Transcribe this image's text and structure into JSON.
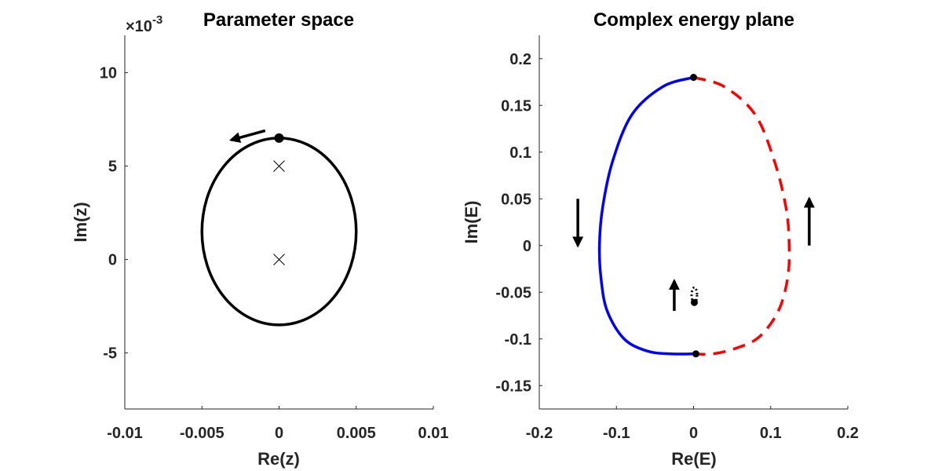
{
  "chart_data": [
    {
      "type": "line",
      "title": "Parameter space",
      "xlabel": "Re(z)",
      "ylabel": "Im(z)",
      "y_exponent_label": "×10",
      "y_exponent": "-3",
      "xlim": [
        -0.01,
        0.01
      ],
      "ylim": [
        -0.008,
        0.012
      ],
      "xticks": [
        -0.01,
        -0.005,
        0,
        0.005,
        0.01
      ],
      "xtick_labels": [
        "-0.01",
        "-0.005",
        "0",
        "0.005",
        "0.01"
      ],
      "yticks": [
        -0.005,
        0,
        0.005,
        0.01
      ],
      "ytick_labels": [
        "-5",
        "0",
        "5",
        "10"
      ],
      "grid": false,
      "loop": {
        "center": [
          0,
          0.0015
        ],
        "radius_x": 0.005,
        "radius_y": 0.005,
        "color": "#000000",
        "style": "solid"
      },
      "start_point": [
        0,
        0.0065
      ],
      "exceptional_points": [
        [
          0,
          0.005
        ],
        [
          0,
          0
        ]
      ],
      "arrow": {
        "from": [
          -0.0009,
          0.0069
        ],
        "to": [
          -0.0031,
          0.0064
        ],
        "direction": "counterclockwise"
      }
    },
    {
      "type": "line",
      "title": "Complex energy plane",
      "xlabel": "Re(E)",
      "ylabel": "Im(E)",
      "xlim": [
        -0.2,
        0.2
      ],
      "ylim": [
        -0.175,
        0.225
      ],
      "xticks": [
        -0.2,
        -0.1,
        0,
        0.1,
        0.2
      ],
      "xtick_labels": [
        "-0.2",
        "-0.1",
        "0",
        "0.1",
        "0.2"
      ],
      "yticks": [
        -0.15,
        -0.1,
        -0.05,
        0,
        0.05,
        0.1,
        0.15,
        0.2
      ],
      "ytick_labels": [
        "-0.15",
        "-0.1",
        "-0.05",
        "0",
        "0.05",
        "0.1",
        "0.15",
        "0.2"
      ],
      "grid": false,
      "series": [
        {
          "color": "#0000ff",
          "style": "solid",
          "x": [
            0,
            -0.04,
            -0.08,
            -0.105,
            -0.118,
            -0.122,
            -0.12,
            -0.112,
            -0.09,
            -0.06,
            -0.03,
            0
          ],
          "y": [
            0.18,
            0.17,
            0.14,
            0.09,
            0.04,
            0,
            -0.035,
            -0.07,
            -0.1,
            -0.113,
            -0.116,
            -0.116
          ]
        },
        {
          "color": "#ff0000",
          "style": "dashed",
          "x": [
            0,
            0.04,
            0.08,
            0.105,
            0.12,
            0.124,
            0.122,
            0.11,
            0.085,
            0.055,
            0.025,
            0
          ],
          "y": [
            0.18,
            0.17,
            0.14,
            0.09,
            0.04,
            0,
            -0.035,
            -0.07,
            -0.098,
            -0.11,
            -0.116,
            -0.116
          ]
        },
        {
          "color": "#000000",
          "style": "dotted",
          "ellipse": {
            "center": [
              0.001,
              -0.053
            ],
            "radius_x": 0.0035,
            "radius_y": 0.008
          }
        }
      ],
      "points": [
        [
          0,
          0.18
        ],
        [
          0.003,
          -0.116
        ],
        [
          0.001,
          -0.061
        ]
      ],
      "arrows": [
        {
          "from": [
            -0.15,
            0.05
          ],
          "to": [
            -0.15,
            0
          ],
          "direction": "down"
        },
        {
          "from": [
            0.15,
            0
          ],
          "to": [
            0.15,
            0.05
          ],
          "direction": "up"
        },
        {
          "from": [
            -0.025,
            -0.07
          ],
          "to": [
            -0.025,
            -0.038
          ],
          "direction": "up"
        }
      ]
    }
  ]
}
